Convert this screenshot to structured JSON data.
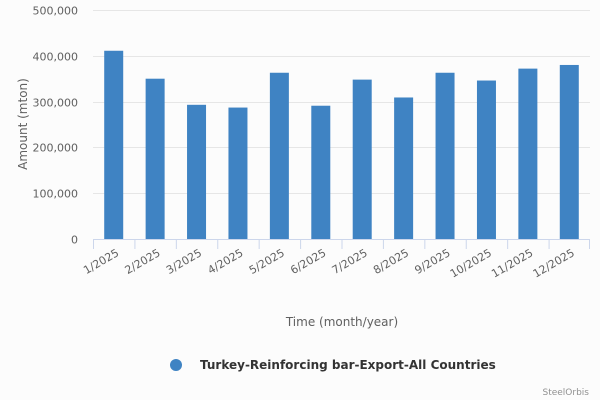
{
  "chart_data": {
    "type": "bar",
    "categories": [
      "1/2025",
      "2/2025",
      "3/2025",
      "4/2025",
      "5/2025",
      "6/2025",
      "7/2025",
      "8/2025",
      "9/2025",
      "10/2025",
      "11/2025",
      "12/2025"
    ],
    "series": [
      {
        "name": "Turkey-Reinforcing bar-Export-All Countries",
        "values": [
          411000,
          350000,
          293000,
          287000,
          363000,
          291000,
          348000,
          309000,
          363000,
          346000,
          372000,
          380000
        ],
        "color": "#3f83c3"
      }
    ],
    "xlabel": "Time (month/year)",
    "ylabel": "Amount (mton)",
    "ylim": [
      0,
      500000
    ],
    "yticks": [
      0,
      100000,
      200000,
      300000,
      400000,
      500000
    ],
    "ytick_labels": [
      "0",
      "100,000",
      "200,000",
      "300,000",
      "400,000",
      "500,000"
    ],
    "grid": true,
    "legend_position": "bottom"
  },
  "credit": "SteelOrbis"
}
